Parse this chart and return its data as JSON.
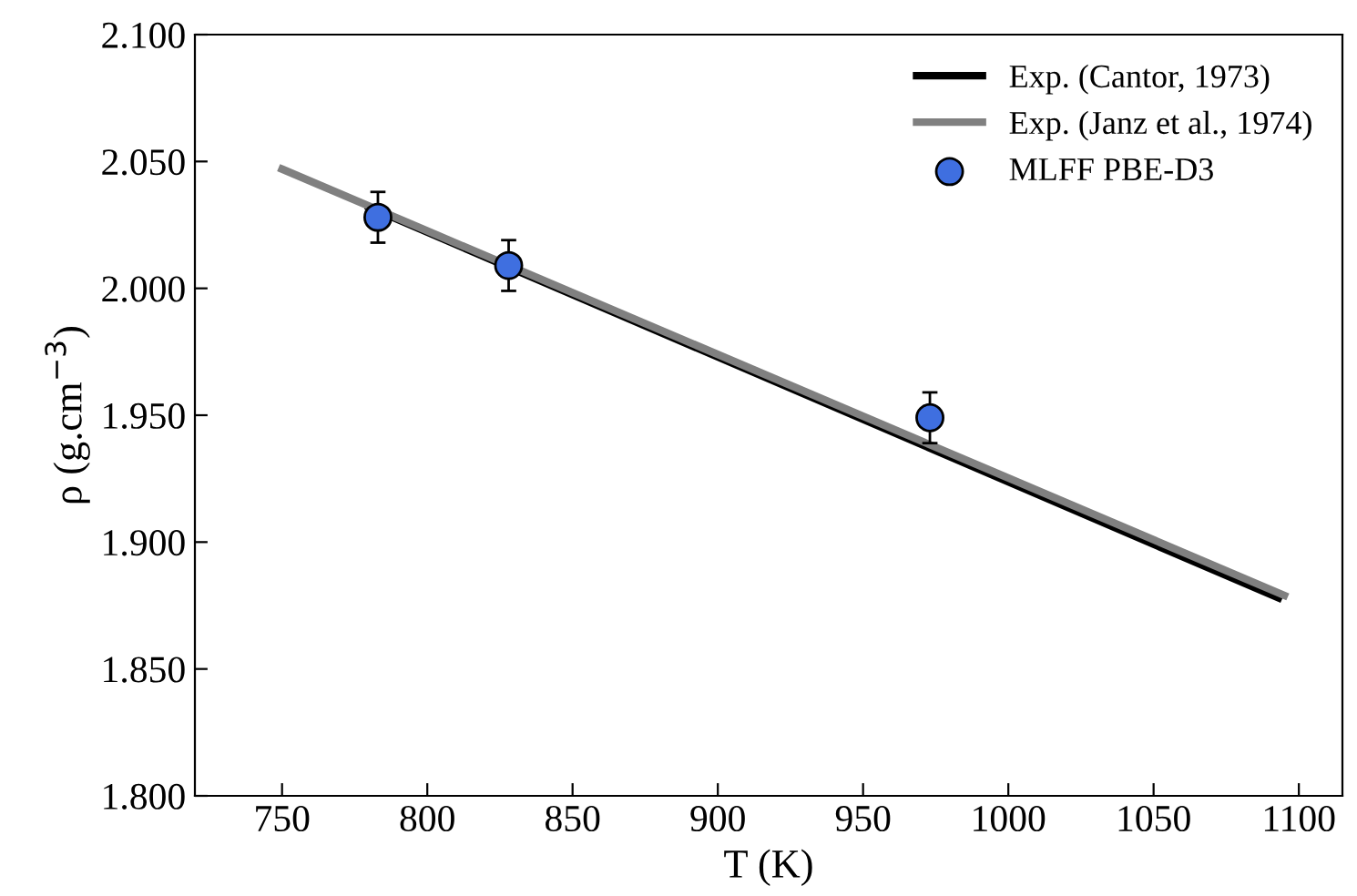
{
  "chart_data": {
    "type": "line",
    "xlabel": "T (K)",
    "ylabel": "ρ (g.cm$^{−3}$)",
    "xlim": [
      720,
      1115
    ],
    "ylim": [
      1.8,
      2.1
    ],
    "xticks": [
      750,
      800,
      850,
      900,
      950,
      1000,
      1050,
      1100
    ],
    "yticks": [
      {
        "value": 1.8,
        "label": "1.800"
      },
      {
        "value": 1.85,
        "label": "1.850"
      },
      {
        "value": 1.9,
        "label": "1.900"
      },
      {
        "value": 1.95,
        "label": "1.950"
      },
      {
        "value": 2.0,
        "label": "2.000"
      },
      {
        "value": 2.05,
        "label": "2.050"
      },
      {
        "value": 2.1,
        "label": "2.100"
      }
    ],
    "legend": "top right",
    "grid": false,
    "series": [
      {
        "name": "Exp. (Cantor, 1973)",
        "color": "#000000",
        "x": [
          780,
          1093
        ],
        "values": [
          2.032,
          1.878
        ]
      },
      {
        "name": "Exp. (Janz et al., 1974)",
        "color": "#808080",
        "x": [
          750,
          1095
        ],
        "values": [
          2.047,
          1.879
        ]
      },
      {
        "name": "MLFF PBE-D3",
        "type": "scatter",
        "color": "#3f6fe0",
        "marker": "circle",
        "x": [
          783,
          828,
          973
        ],
        "values": [
          2.028,
          2.009,
          1.949
        ],
        "errors": [
          0.01,
          0.01,
          0.01
        ]
      }
    ]
  }
}
